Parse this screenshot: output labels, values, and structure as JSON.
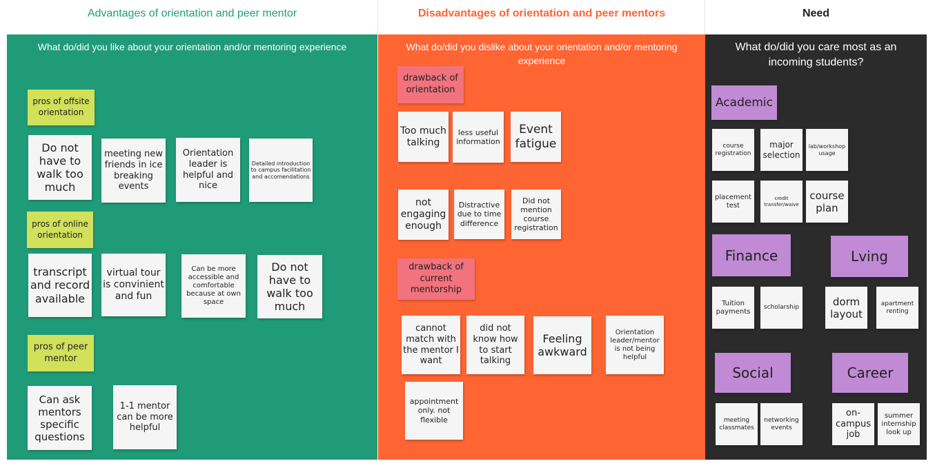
{
  "headers": {
    "advantages": "Advantages of orientation and peer mentor",
    "disadvantages": "Disadvantages of orientation and peer mentors",
    "need": "Need"
  },
  "colors": {
    "green": "#1f9b78",
    "orange": "#ff6433",
    "dark": "#2b2b2b"
  },
  "advantages": {
    "question": "What do/did you like about your orientation and/or mentoring experience",
    "offsite_label": "pros of offsite orientation",
    "offsite_notes": [
      "Do not have to walk too much",
      "meeting new friends in ice breaking events",
      "Orientation leader is helpful and nice",
      "Detailed introduction to campus facilitation and accomendations"
    ],
    "online_label": "pros of online orientation",
    "online_notes": [
      "transcript and record available",
      "virtual tour is convinient and fun",
      "Can be more accessible and comfortable because at own space",
      "Do not have to walk too much"
    ],
    "peer_label": "pros of peer mentor",
    "peer_notes": [
      "Can ask mentors specific questions",
      "1-1 mentor can be more helpful"
    ]
  },
  "disadvantages": {
    "question": "What do/did you dislike about your orientation and/or mentoring experience",
    "orientation_label": "drawback of orientation",
    "orientation_notes": [
      "Too much talking",
      "less useful information",
      "Event fatigue",
      "not engaging enough",
      "Distractive due to time difference",
      "Did not mention course registration"
    ],
    "mentorship_label": "drawback of current mentorship",
    "mentorship_notes": [
      "cannot match with the mentor I want",
      "did not know how to start talking",
      "Feeling awkward",
      "Orientation leader/mentor is not being helpful",
      "appointment only. not flexible"
    ]
  },
  "need": {
    "question": "What do/did you care most as an incoming students?",
    "academic_label": "Academic",
    "academic_notes": [
      "course registration",
      "major selection",
      "lab/workshop usage",
      "placement test",
      "credit transfer/waive",
      "course plan"
    ],
    "finance_label": "Finance",
    "finance_notes": [
      "Tuition payments",
      "scholarship"
    ],
    "living_label": "Lving",
    "living_notes": [
      "dorm layout",
      "apartment renting"
    ],
    "social_label": "Social",
    "social_notes": [
      "meeting classmates",
      "networking events"
    ],
    "career_label": "Career",
    "career_notes": [
      "on-campus job",
      "summer internship look up"
    ]
  }
}
